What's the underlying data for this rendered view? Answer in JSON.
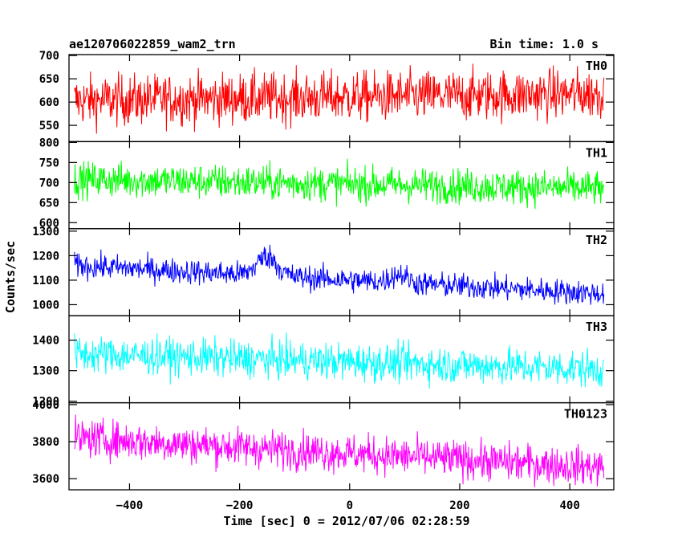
{
  "chart_data": {
    "type": "line",
    "title": "ae120706022859_wam2_trn",
    "subtitle": "Bin time: 1.0 s",
    "xlabel": "Time [sec] 0 = 2012/07/06 02:28:59",
    "ylabel": "Counts/sec",
    "xlim": [
      -510,
      480
    ],
    "x_ticks": [
      -400,
      -200,
      0,
      200,
      400
    ],
    "x_range": [
      -500,
      462
    ],
    "panels": [
      {
        "name": "TH0",
        "color": "#ff0000",
        "ylim": [
          515,
          702
        ],
        "y_ticks": [
          550,
          600,
          650,
          700
        ],
        "mean_start": 603,
        "mean_end": 618,
        "noise": 45,
        "bumps": []
      },
      {
        "name": "TH1",
        "color": "#00ff00",
        "ylim": [
          585,
          802
        ],
        "y_ticks": [
          600,
          650,
          700,
          750,
          800
        ],
        "mean_start": 708,
        "mean_end": 685,
        "noise": 36,
        "bumps": []
      },
      {
        "name": "TH2",
        "color": "#0000ff",
        "ylim": [
          955,
          1310
        ],
        "y_ticks": [
          1000,
          1100,
          1200,
          1300
        ],
        "mean_start": 1160,
        "mean_end": 1045,
        "noise": 42,
        "bumps": [
          {
            "t": -150,
            "w": 18,
            "h": 80
          },
          {
            "t": 90,
            "w": 15,
            "h": 35
          }
        ]
      },
      {
        "name": "TH3",
        "color": "#00ffff",
        "ylim": [
          1195,
          1480
        ],
        "y_ticks": [
          1200,
          1300,
          1400
        ],
        "mean_start": 1355,
        "mean_end": 1305,
        "noise": 50,
        "bumps": []
      },
      {
        "name": "TH0123",
        "color": "#ff00ff",
        "ylim": [
          3540,
          4010
        ],
        "y_ticks": [
          3600,
          3800,
          4000
        ],
        "mean_start": 3820,
        "mean_end": 3660,
        "noise": 85,
        "bumps": []
      }
    ]
  }
}
